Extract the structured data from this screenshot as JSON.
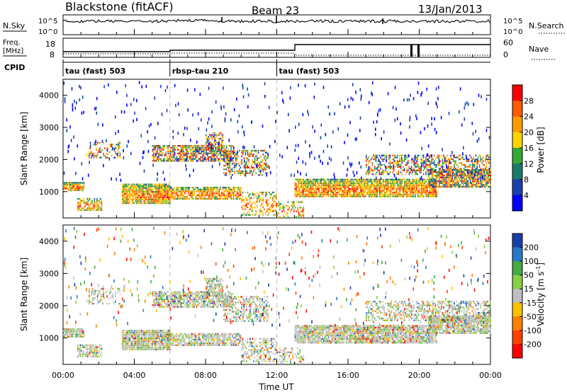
{
  "header": {
    "station": "Blackstone (fitACF)",
    "beam": "Beam 23",
    "date": "13/Jan/2013"
  },
  "nsky_panel": {
    "left_label": "N.Sky",
    "right_label": "N.Search",
    "left_ticks": [
      "10^5",
      "10^0"
    ],
    "right_ticks": [
      "10^5",
      "10^0"
    ]
  },
  "freq_panel": {
    "left_label_1": "Freq.",
    "left_label_2": "[MHz]",
    "left_ticks": [
      "18",
      "8"
    ],
    "right_label": "Nave",
    "right_ticks": [
      "60",
      "0"
    ]
  },
  "cpid_panel": {
    "label": "CPID",
    "modes": [
      {
        "name": "tau (fast) 503",
        "start_hour": 0
      },
      {
        "name": "rbsp-tau 210",
        "start_hour": 6
      },
      {
        "name": "tau (fast) 503",
        "start_hour": 12
      }
    ]
  },
  "colorbars": {
    "power": {
      "label": "Power [dB]",
      "ticks": [
        "28",
        "24",
        "20",
        "16",
        "12",
        "8",
        "4"
      ],
      "colors": [
        "#ff0000",
        "#ff5a00",
        "#ff9a00",
        "#ffd200",
        "#33aa33",
        "#1a7a6a",
        "#1a3fb0",
        "#0000ff"
      ]
    },
    "velocity": {
      "label": "Velocity [m s",
      "label_sup": "-1",
      "label_end": "]",
      "ticks": [
        "200",
        "100",
        "50",
        "15",
        "-15",
        "-50",
        "-100",
        "-200"
      ],
      "colors": [
        "#1a3faa",
        "#2878c8",
        "#44aa44",
        "#88d044",
        "#bfbfbf",
        "#ffc000",
        "#ff8000",
        "#ff4000",
        "#ff0000"
      ]
    }
  },
  "chart_data": [
    {
      "type": "heatmap",
      "name": "power",
      "ylabel": "Slant Range [km]",
      "xlim": [
        0,
        24
      ],
      "ylim": [
        180,
        4500
      ],
      "yticks": [
        1000,
        2000,
        3000,
        4000
      ],
      "ytick_labels": [
        "1000",
        "2000",
        "3000",
        "4000"
      ],
      "scatter_bands": [
        {
          "t0": 0.0,
          "t1": 1.2,
          "r0": 1050,
          "r1": 1300,
          "density": 0.85
        },
        {
          "t0": 0.8,
          "t1": 2.2,
          "r0": 450,
          "r1": 800,
          "density": 0.7
        },
        {
          "t0": 1.3,
          "t1": 3.2,
          "r0": 2050,
          "r1": 2550,
          "density": 0.35
        },
        {
          "t0": 3.3,
          "t1": 6.0,
          "r0": 650,
          "r1": 1250,
          "density": 0.92
        },
        {
          "t0": 6.0,
          "t1": 10.0,
          "r0": 800,
          "r1": 1150,
          "density": 0.8
        },
        {
          "t0": 5.0,
          "t1": 9.5,
          "r0": 1950,
          "r1": 2450,
          "density": 0.75
        },
        {
          "t0": 8.0,
          "t1": 9.0,
          "r0": 2300,
          "r1": 2850,
          "density": 0.6
        },
        {
          "t0": 9.0,
          "t1": 11.5,
          "r0": 1500,
          "r1": 2300,
          "density": 0.45
        },
        {
          "t0": 10.0,
          "t1": 12.0,
          "r0": 300,
          "r1": 1000,
          "density": 0.45
        },
        {
          "t0": 12.0,
          "t1": 13.5,
          "r0": 200,
          "r1": 700,
          "density": 0.35
        },
        {
          "t0": 13.0,
          "t1": 21.0,
          "r0": 850,
          "r1": 1400,
          "density": 0.9
        },
        {
          "t0": 17.0,
          "t1": 24.0,
          "r0": 1550,
          "r1": 2150,
          "density": 0.5
        },
        {
          "t0": 20.5,
          "t1": 24.0,
          "r0": 1150,
          "r1": 1700,
          "density": 0.85
        }
      ]
    },
    {
      "type": "heatmap",
      "name": "velocity",
      "ylabel": "Slant Range [km]",
      "xlabel": "Time UT",
      "xlim": [
        0,
        24
      ],
      "ylim": [
        180,
        4500
      ],
      "yticks": [
        1000,
        2000,
        3000,
        4000
      ],
      "ytick_labels": [
        "1000",
        "2000",
        "3000",
        "4000"
      ],
      "xtick_labels": [
        "00:00",
        "04:00",
        "08:00",
        "12:00",
        "16:00",
        "20:00",
        "00:00"
      ],
      "xticks": [
        0,
        4,
        8,
        12,
        16,
        20,
        24
      ]
    }
  ]
}
